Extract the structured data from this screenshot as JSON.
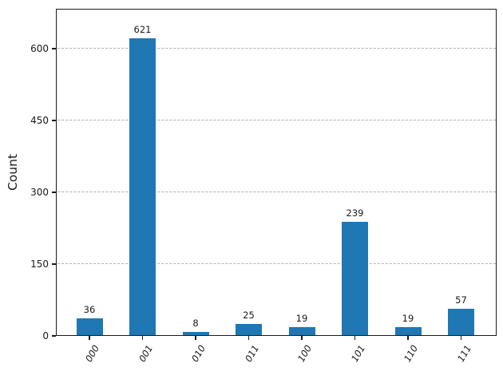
{
  "figure": {
    "background": "#ffffff"
  },
  "chart_data": {
    "type": "bar",
    "title": "",
    "categories": [
      "000",
      "001",
      "010",
      "011",
      "100",
      "101",
      "110",
      "111"
    ],
    "values": [
      36,
      621,
      8,
      25,
      19,
      239,
      19,
      57
    ],
    "bar_value_labels": [
      "36",
      "621",
      "8",
      "25",
      "19",
      "239",
      "19",
      "57"
    ],
    "xlabel": "",
    "ylabel": "Count",
    "yticks": [
      0,
      150,
      300,
      450,
      600
    ],
    "ylim": [
      0,
      683
    ],
    "grid": {
      "axis": "y",
      "style": "dashed",
      "color": "#b0b0b0"
    },
    "legend_position": "none",
    "bar_color": "#1f77b4",
    "axis_color": "#1a1a1a",
    "text_color": "#1a1a1a",
    "xtick_label_style": "italic-rotated"
  }
}
